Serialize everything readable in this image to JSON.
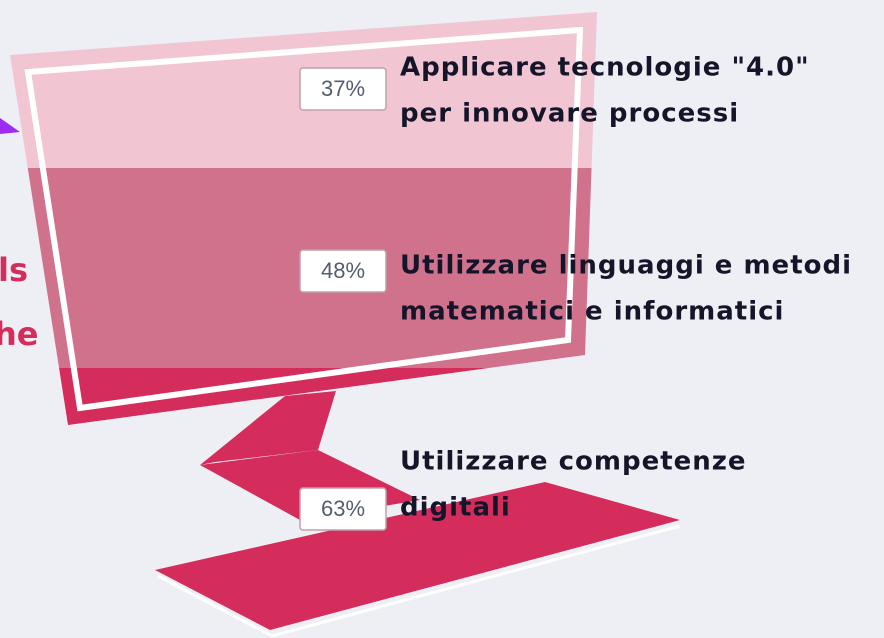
{
  "fragments": [
    "ls",
    "he"
  ],
  "items": [
    {
      "percent": "37%",
      "lines": [
        "Applicare tecnologie \"4.0\"",
        "per innovare processi"
      ]
    },
    {
      "percent": "48%",
      "lines": [
        "Utilizzare linguaggi e metodi",
        "matematici e informatici"
      ]
    },
    {
      "percent": "63%",
      "lines": [
        "Utilizzare competenze",
        "digitali"
      ]
    }
  ]
}
